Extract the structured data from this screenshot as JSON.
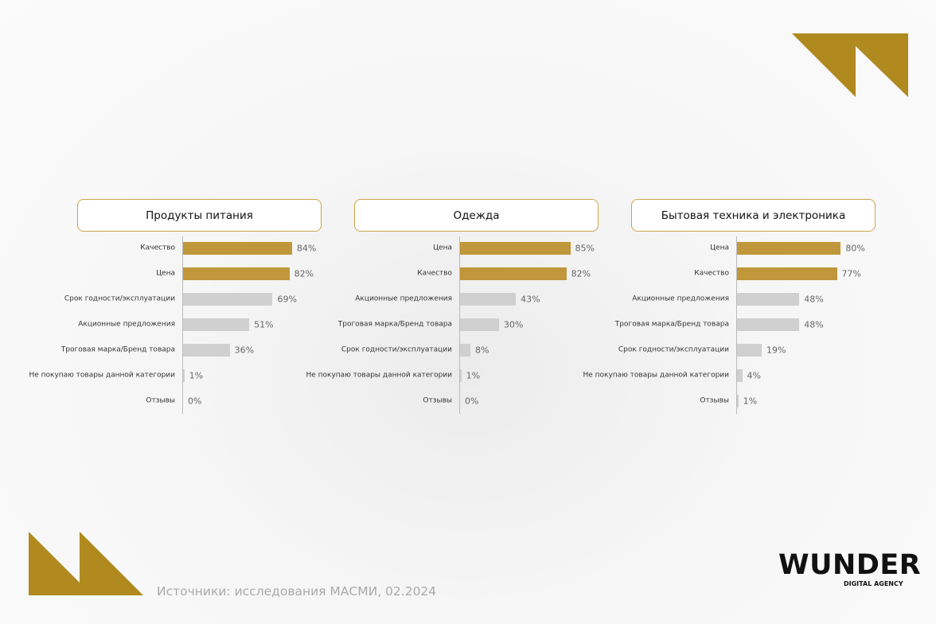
{
  "chart_data": [
    {
      "type": "bar",
      "title": "Продукты питания",
      "categories": [
        "Качество",
        "Цена",
        "Срок годности/эксплуатации",
        "Акционные предложения",
        "Троговая марка/Бренд товара",
        "Не покупаю товары данной категории",
        "Отзывы"
      ],
      "values": [
        84,
        82,
        69,
        51,
        36,
        1,
        0
      ],
      "value_labels": [
        "84%",
        "82%",
        "69%",
        "51%",
        "36%",
        "1%",
        "0%"
      ],
      "colors": [
        "#c0973a",
        "#c0973a",
        "#d0d0d0",
        "#d0d0d0",
        "#d0d0d0",
        "#d0d0d0",
        "#d0d0d0"
      ]
    },
    {
      "type": "bar",
      "title": "Одежда",
      "categories": [
        "Цена",
        "Качество",
        "Акционные предложения",
        "Троговая марка/Бренд товара",
        "Срок годности/эксплуатации",
        "Не покупаю товары данной категории",
        "Отзывы"
      ],
      "values": [
        85,
        82,
        43,
        30,
        8,
        1,
        0
      ],
      "value_labels": [
        "85%",
        "82%",
        "43%",
        "30%",
        "8%",
        "1%",
        "0%"
      ],
      "colors": [
        "#c0973a",
        "#c0973a",
        "#d0d0d0",
        "#d0d0d0",
        "#d0d0d0",
        "#d0d0d0",
        "#d0d0d0"
      ]
    },
    {
      "type": "bar",
      "title": "Бытовая техника и электроника",
      "categories": [
        "Цена",
        "Качество",
        "Акционные предложения",
        "Троговая марка/Бренд товара",
        "Срок годности/эксплуатации",
        "Не покупаю товары данной категории",
        "Отзывы"
      ],
      "values": [
        80,
        77,
        48,
        48,
        19,
        4,
        1
      ],
      "value_labels": [
        "80%",
        "77%",
        "48%",
        "48%",
        "19%",
        "4%",
        "1%"
      ],
      "colors": [
        "#c0973a",
        "#c0973a",
        "#d0d0d0",
        "#d0d0d0",
        "#d0d0d0",
        "#d0d0d0",
        "#d0d0d0"
      ]
    }
  ],
  "source": "Источники: исследования МАСМИ, 02.2024",
  "logo": {
    "name": "WUNDER",
    "tagline": "DIGITAL AGENCY"
  }
}
